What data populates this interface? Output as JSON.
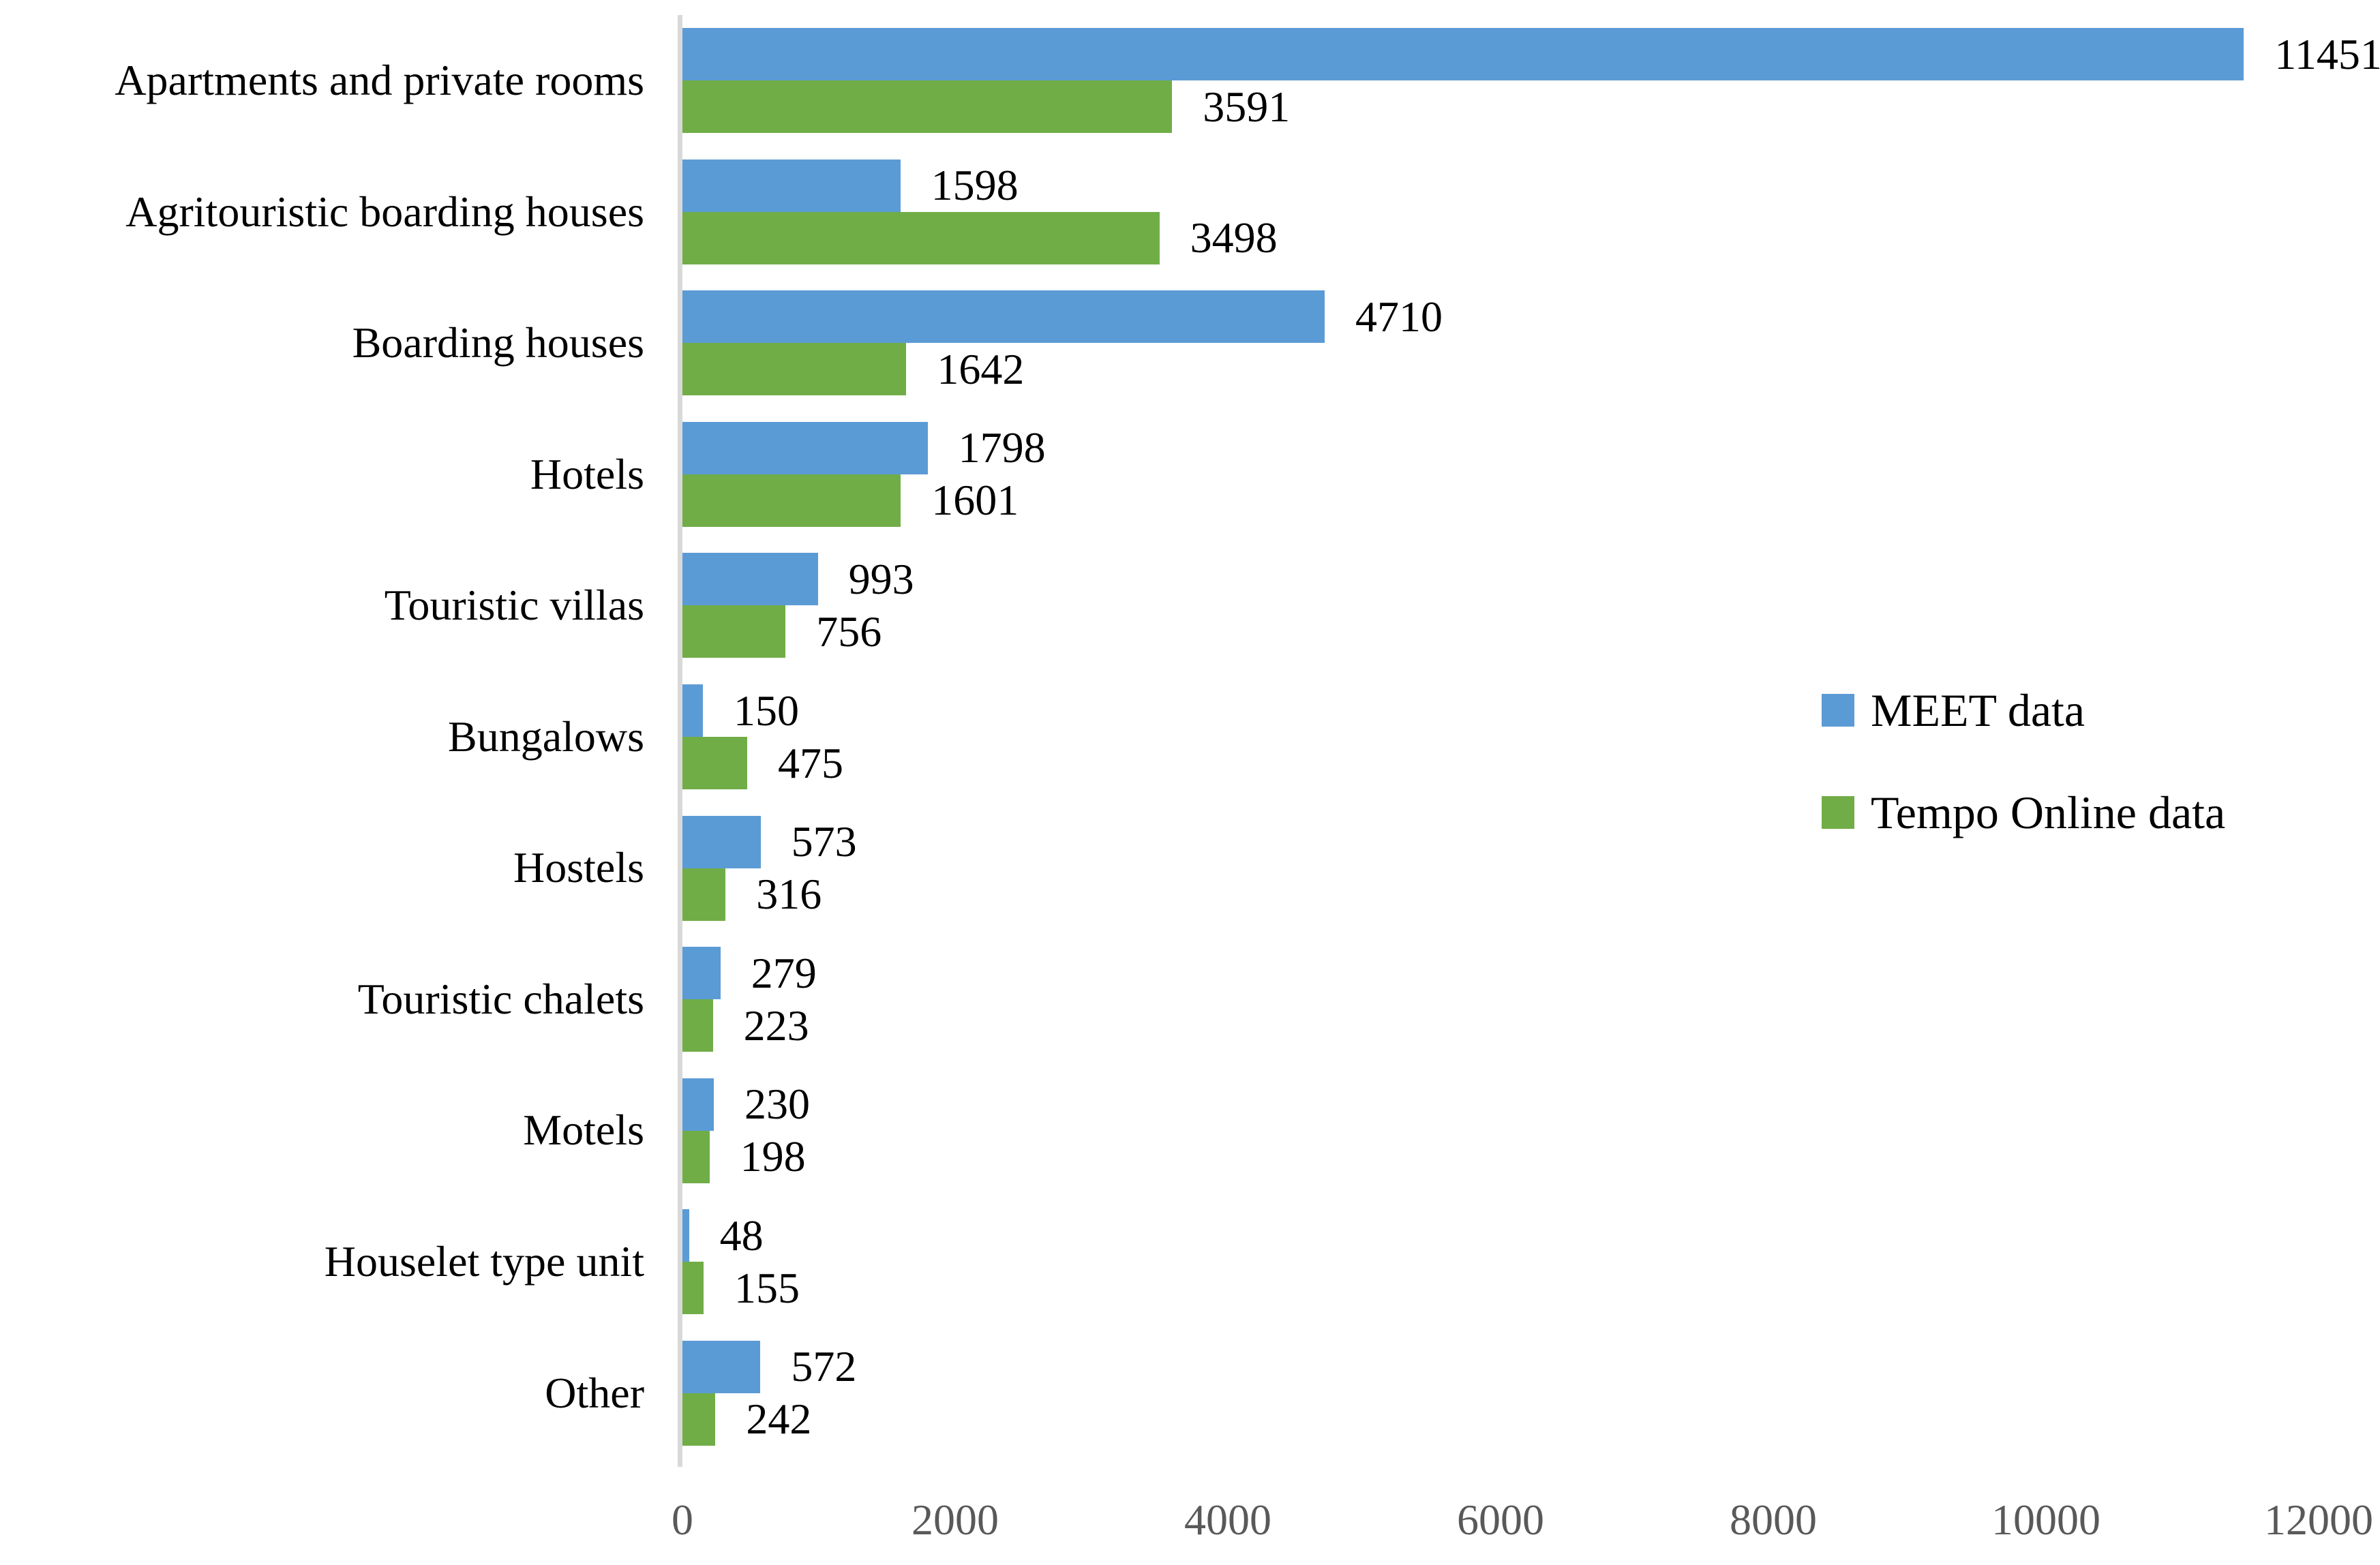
{
  "figure": {
    "background": "#FFFFFF"
  },
  "chart_data": {
    "type": "bar",
    "orientation": "horizontal",
    "title": "",
    "xlabel": "",
    "ylabel": "",
    "categories": [
      "Apartments and private rooms",
      "Agritouristic boarding houses",
      "Boarding houses",
      "Hotels",
      "Touristic villas",
      "Bungalows",
      "Hostels",
      "Touristic chalets",
      "Motels",
      "Houselet type unit",
      "Other"
    ],
    "series": [
      {
        "name": "MEET data",
        "color": "#5B9BD5",
        "values": [
          11451,
          1598,
          4710,
          1798,
          993,
          150,
          573,
          279,
          230,
          48,
          572
        ]
      },
      {
        "name": "Tempo Online data",
        "color": "#70AD47",
        "values": [
          3591,
          3498,
          1642,
          1601,
          756,
          475,
          316,
          223,
          198,
          155,
          242
        ]
      }
    ],
    "xlim": [
      0,
      12000
    ],
    "x_ticks": [
      0,
      2000,
      4000,
      6000,
      8000,
      10000,
      12000
    ],
    "bar_value_labels": true,
    "grid": false,
    "legend_position": "center-right",
    "axis_line_color": "#D9D9D9",
    "tick_label_color": "#595959",
    "value_label_color": "#000000"
  }
}
